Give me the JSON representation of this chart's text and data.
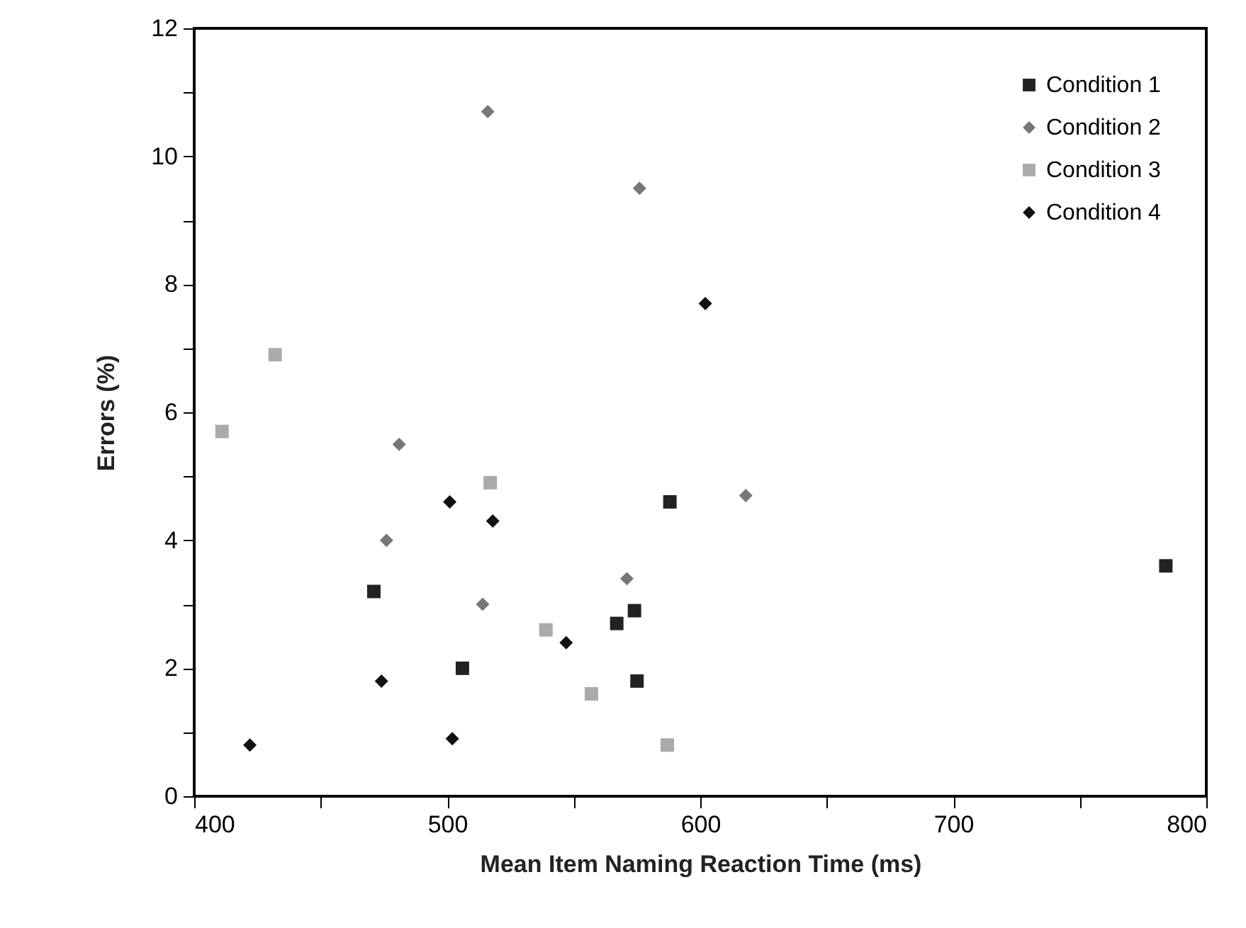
{
  "chart_data": {
    "type": "scatter",
    "xlabel": "Mean Item Naming Reaction Time (ms)",
    "ylabel": "Errors (%)",
    "xlim": [
      400,
      800
    ],
    "ylim": [
      0,
      12
    ],
    "xticks": [
      400,
      {
        "value": 450,
        "label": null
      },
      500,
      {
        "value": 550,
        "label": null
      },
      600,
      {
        "value": 650,
        "label": null
      },
      700,
      {
        "value": 750,
        "label": null
      },
      800
    ],
    "yticks": [
      0,
      {
        "value": 1,
        "label": null
      },
      2,
      {
        "value": 3,
        "label": null
      },
      4,
      {
        "value": 5,
        "label": null
      },
      6,
      {
        "value": 7,
        "label": null
      },
      8,
      {
        "value": 9,
        "label": null
      },
      10,
      {
        "value": 11,
        "label": null
      },
      12
    ],
    "grid": false,
    "legend": "top right",
    "series": [
      {
        "name": "Condition 1",
        "color": "#222222",
        "marker": "square",
        "x": [
          588,
          471,
          506,
          567,
          574,
          575,
          784
        ],
        "values": [
          4.6,
          3.2,
          2.0,
          2.7,
          2.9,
          1.8,
          3.6
        ]
      },
      {
        "name": "Condition 2",
        "color": "#777777",
        "marker": "diamond",
        "x": [
          516,
          576,
          481,
          476,
          514,
          571,
          618
        ],
        "values": [
          10.7,
          9.5,
          5.5,
          4.0,
          3.0,
          3.4,
          4.7
        ]
      },
      {
        "name": "Condition 3",
        "color": "#aaaaaa",
        "marker": "square",
        "x": [
          432,
          411,
          517,
          539,
          557,
          587
        ],
        "values": [
          6.9,
          5.7,
          4.9,
          2.6,
          1.6,
          0.8
        ]
      },
      {
        "name": "Condition 4",
        "color": "#111111",
        "marker": "diamond",
        "x": [
          602,
          501,
          518,
          547,
          474,
          422,
          502
        ],
        "values": [
          7.7,
          4.6,
          4.3,
          2.4,
          1.8,
          0.8,
          0.9
        ]
      }
    ]
  }
}
